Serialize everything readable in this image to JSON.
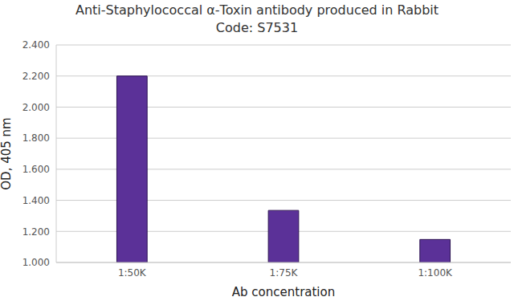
{
  "chart_data": {
    "type": "bar",
    "title": "Anti-Staphylococcal α-Toxin antibody produced in Rabbit",
    "subtitle": "Code: S7531",
    "x_label": "Ab concentration",
    "y_label": "OD, 405 nm",
    "categories": [
      "1:50K",
      "1:75K",
      "1:100K"
    ],
    "values": [
      2.2,
      1.335,
      1.148
    ],
    "color": "#5b3198",
    "ylim": [
      1.0,
      2.4
    ],
    "yticks": [
      {
        "value": 1.0,
        "label": "1.000"
      },
      {
        "value": 1.2,
        "label": "1.200"
      },
      {
        "value": 1.4,
        "label": "1.400"
      },
      {
        "value": 1.6,
        "label": "1.600"
      },
      {
        "value": 1.8,
        "label": "1.800"
      },
      {
        "value": 2.0,
        "label": "2.000"
      },
      {
        "value": 2.2,
        "label": "2.200"
      },
      {
        "value": 2.4,
        "label": "2.400"
      }
    ],
    "grid": true
  }
}
